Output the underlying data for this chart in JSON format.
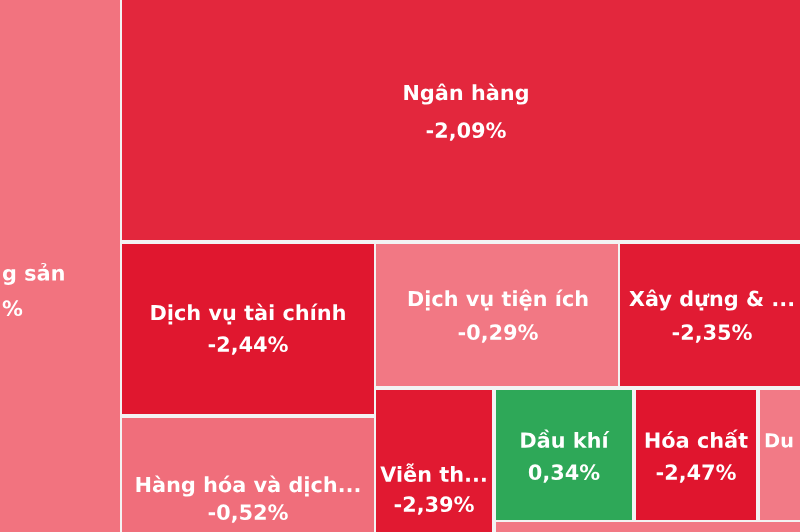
{
  "chart_data": {
    "type": "other",
    "categories": [
      "g sản",
      "Ngân hàng",
      "Dịch vụ tài chính",
      "Dịch vụ tiện ích",
      "Xây dựng & ...",
      "Hàng hóa và dịch...",
      "Viễn th...",
      "Dầu khí",
      "Hóa chất",
      "Du"
    ],
    "values": [
      null,
      -2.09,
      -2.44,
      -0.29,
      -2.35,
      -0.52,
      -2.39,
      0.34,
      -2.47,
      null
    ],
    "value_labels": [
      "%",
      "-2,09%",
      "-2,44%",
      "-0,29%",
      "-2,35%",
      "-0,52%",
      "-2,39%",
      "0,34%",
      "-2,47%",
      null
    ],
    "colors": [
      "#f2737f",
      null,
      null,
      null,
      null,
      null,
      null,
      null,
      null,
      "#f27a86"
    ]
  }
}
